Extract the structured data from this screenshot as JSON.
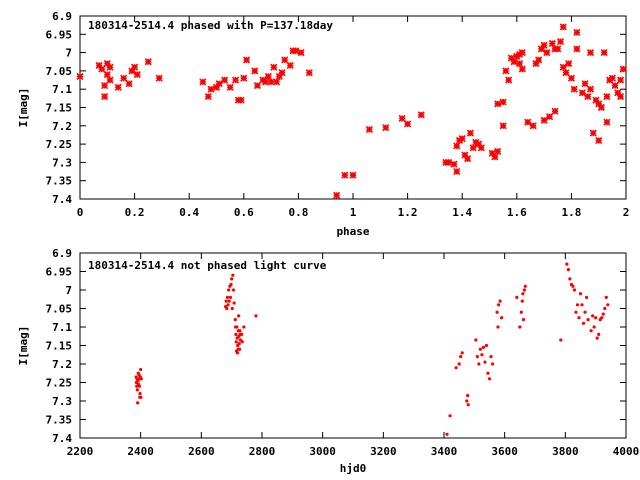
{
  "chart_data": [
    {
      "type": "scatter",
      "title": "180314-2514.4 phased with P=137.18day",
      "xlabel": "phase",
      "ylabel": "I[mag]",
      "xlim": [
        0,
        2
      ],
      "ylim": [
        6.9,
        7.4
      ],
      "y_inverted": true,
      "grid": false,
      "legend": "none",
      "marker": "cross",
      "color": "#ff0000",
      "xticks": [
        "0",
        "0.2",
        "0.4",
        "0.6",
        "0.8",
        "1",
        "1.2",
        "1.4",
        "1.6",
        "1.8",
        "2"
      ],
      "yticks": [
        "6.9",
        "6.95",
        "7",
        "7.05",
        "7.1",
        "7.15",
        "7.2",
        "7.25",
        "7.3",
        "7.35",
        "7.4"
      ],
      "points": [
        [
          0.0,
          7.065
        ],
        [
          0.07,
          7.035
        ],
        [
          0.08,
          7.045
        ],
        [
          0.09,
          7.09
        ],
        [
          0.09,
          7.12
        ],
        [
          0.1,
          7.03
        ],
        [
          0.1,
          7.06
        ],
        [
          0.11,
          7.04
        ],
        [
          0.11,
          7.075
        ],
        [
          0.14,
          7.095
        ],
        [
          0.16,
          7.07
        ],
        [
          0.18,
          7.085
        ],
        [
          0.19,
          7.05
        ],
        [
          0.2,
          7.04
        ],
        [
          0.21,
          7.06
        ],
        [
          0.25,
          7.025
        ],
        [
          0.29,
          7.07
        ],
        [
          0.45,
          7.08
        ],
        [
          0.47,
          7.12
        ],
        [
          0.48,
          7.1
        ],
        [
          0.5,
          7.095
        ],
        [
          0.51,
          7.085
        ],
        [
          0.53,
          7.075
        ],
        [
          0.55,
          7.095
        ],
        [
          0.57,
          7.075
        ],
        [
          0.58,
          7.13
        ],
        [
          0.59,
          7.13
        ],
        [
          0.6,
          7.07
        ],
        [
          0.61,
          7.02
        ],
        [
          0.64,
          7.05
        ],
        [
          0.65,
          7.09
        ],
        [
          0.67,
          7.075
        ],
        [
          0.68,
          7.08
        ],
        [
          0.69,
          7.065
        ],
        [
          0.7,
          7.08
        ],
        [
          0.71,
          7.04
        ],
        [
          0.72,
          7.08
        ],
        [
          0.73,
          7.065
        ],
        [
          0.74,
          7.055
        ],
        [
          0.75,
          7.02
        ],
        [
          0.77,
          7.035
        ],
        [
          0.78,
          6.995
        ],
        [
          0.79,
          6.995
        ],
        [
          0.81,
          7.0
        ],
        [
          0.84,
          7.055
        ],
        [
          0.94,
          7.39
        ],
        [
          0.97,
          7.335
        ],
        [
          1.0,
          7.335
        ],
        [
          1.06,
          7.21
        ],
        [
          1.12,
          7.205
        ],
        [
          1.18,
          7.18
        ],
        [
          1.2,
          7.195
        ],
        [
          1.25,
          7.17
        ],
        [
          1.34,
          7.3
        ],
        [
          1.35,
          7.3
        ],
        [
          1.37,
          7.305
        ],
        [
          1.38,
          7.325
        ],
        [
          1.38,
          7.255
        ],
        [
          1.39,
          7.24
        ],
        [
          1.4,
          7.235
        ],
        [
          1.41,
          7.28
        ],
        [
          1.42,
          7.29
        ],
        [
          1.43,
          7.22
        ],
        [
          1.44,
          7.26
        ],
        [
          1.45,
          7.245
        ],
        [
          1.46,
          7.25
        ],
        [
          1.47,
          7.26
        ],
        [
          1.51,
          7.275
        ],
        [
          1.52,
          7.285
        ],
        [
          1.53,
          7.27
        ],
        [
          1.53,
          7.14
        ],
        [
          1.55,
          7.2
        ],
        [
          1.55,
          7.135
        ],
        [
          1.56,
          7.05
        ],
        [
          1.57,
          7.075
        ],
        [
          1.58,
          7.015
        ],
        [
          1.59,
          7.025
        ],
        [
          1.6,
          7.01
        ],
        [
          1.61,
          7.005
        ],
        [
          1.61,
          7.03
        ],
        [
          1.62,
          7.0
        ],
        [
          1.62,
          7.045
        ],
        [
          1.64,
          7.19
        ],
        [
          1.66,
          7.2
        ],
        [
          1.67,
          7.03
        ],
        [
          1.68,
          7.02
        ],
        [
          1.69,
          6.99
        ],
        [
          1.7,
          7.185
        ],
        [
          1.7,
          6.98
        ],
        [
          1.71,
          7.0
        ],
        [
          1.72,
          7.175
        ],
        [
          1.73,
          6.975
        ],
        [
          1.74,
          6.99
        ],
        [
          1.74,
          7.16
        ],
        [
          1.75,
          6.99
        ],
        [
          1.76,
          6.97
        ],
        [
          1.77,
          7.04
        ],
        [
          1.77,
          6.93
        ],
        [
          1.78,
          7.055
        ],
        [
          1.79,
          7.03
        ],
        [
          1.8,
          7.07
        ],
        [
          1.81,
          7.1
        ],
        [
          1.82,
          6.945
        ],
        [
          1.82,
          6.99
        ],
        [
          1.84,
          7.11
        ],
        [
          1.85,
          7.085
        ],
        [
          1.86,
          7.12
        ],
        [
          1.87,
          7.1
        ],
        [
          1.87,
          7.0
        ],
        [
          1.88,
          7.22
        ],
        [
          1.89,
          7.13
        ],
        [
          1.9,
          7.14
        ],
        [
          1.9,
          7.24
        ],
        [
          1.91,
          7.15
        ],
        [
          1.92,
          7.0
        ],
        [
          1.93,
          7.12
        ],
        [
          1.93,
          7.19
        ],
        [
          1.94,
          7.075
        ],
        [
          1.95,
          7.07
        ],
        [
          1.96,
          7.09
        ],
        [
          1.97,
          7.11
        ],
        [
          1.98,
          7.12
        ],
        [
          1.98,
          7.075
        ],
        [
          1.99,
          7.045
        ]
      ]
    },
    {
      "type": "scatter",
      "title": "180314-2514.4 not phased light curve",
      "xlabel": "hjd0",
      "ylabel": "I[mag]",
      "xlim": [
        2200,
        4000
      ],
      "ylim": [
        6.9,
        7.4
      ],
      "y_inverted": true,
      "grid": false,
      "legend": "none",
      "marker": "dot",
      "color": "#ff0000",
      "xticks": [
        "2200",
        "2400",
        "2600",
        "2800",
        "3000",
        "3200",
        "3400",
        "3600",
        "3800",
        "4000"
      ],
      "yticks": [
        "6.9",
        "6.95",
        "7",
        "7.05",
        "7.1",
        "7.15",
        "7.2",
        "7.25",
        "7.3",
        "7.35",
        "7.4"
      ],
      "points": [
        [
          2385,
          7.235
        ],
        [
          2386,
          7.25
        ],
        [
          2387,
          7.26
        ],
        [
          2388,
          7.24
        ],
        [
          2389,
          7.27
        ],
        [
          2390,
          7.305
        ],
        [
          2391,
          7.245
        ],
        [
          2392,
          7.225
        ],
        [
          2393,
          7.255
        ],
        [
          2394,
          7.24
        ],
        [
          2395,
          7.23
        ],
        [
          2396,
          7.26
        ],
        [
          2397,
          7.29
        ],
        [
          2398,
          7.28
        ],
        [
          2399,
          7.235
        ],
        [
          2400,
          7.215
        ],
        [
          2401,
          7.29
        ],
        [
          2402,
          7.24
        ],
        [
          2680,
          7.045
        ],
        [
          2682,
          7.03
        ],
        [
          2684,
          7.05
        ],
        [
          2686,
          7.02
        ],
        [
          2688,
          7.04
        ],
        [
          2690,
          7.0
        ],
        [
          2692,
          7.03
        ],
        [
          2694,
          6.99
        ],
        [
          2696,
          7.02
        ],
        [
          2698,
          6.985
        ],
        [
          2700,
          6.97
        ],
        [
          2702,
          7.05
        ],
        [
          2704,
          6.96
        ],
        [
          2706,
          7.0
        ],
        [
          2708,
          7.035
        ],
        [
          2712,
          7.08
        ],
        [
          2713,
          7.1
        ],
        [
          2714,
          7.12
        ],
        [
          2715,
          7.14
        ],
        [
          2716,
          7.165
        ],
        [
          2717,
          7.1
        ],
        [
          2718,
          7.13
        ],
        [
          2719,
          7.17
        ],
        [
          2720,
          7.15
        ],
        [
          2721,
          7.16
        ],
        [
          2722,
          7.11
        ],
        [
          2723,
          7.07
        ],
        [
          2724,
          7.125
        ],
        [
          2725,
          7.145
        ],
        [
          2726,
          7.16
        ],
        [
          2727,
          7.11
        ],
        [
          2728,
          7.12
        ],
        [
          2729,
          7.135
        ],
        [
          2730,
          7.12
        ],
        [
          2733,
          7.12
        ],
        [
          2735,
          7.14
        ],
        [
          2740,
          7.1
        ],
        [
          2780,
          7.07
        ],
        [
          3410,
          7.39
        ],
        [
          3420,
          7.34
        ],
        [
          3440,
          7.21
        ],
        [
          3450,
          7.2
        ],
        [
          3455,
          7.18
        ],
        [
          3460,
          7.17
        ],
        [
          3475,
          7.3
        ],
        [
          3478,
          7.285
        ],
        [
          3480,
          7.31
        ],
        [
          3505,
          7.135
        ],
        [
          3510,
          7.18
        ],
        [
          3515,
          7.2
        ],
        [
          3520,
          7.16
        ],
        [
          3525,
          7.175
        ],
        [
          3530,
          7.155
        ],
        [
          3535,
          7.195
        ],
        [
          3540,
          7.15
        ],
        [
          3545,
          7.225
        ],
        [
          3550,
          7.24
        ],
        [
          3555,
          7.18
        ],
        [
          3560,
          7.2
        ],
        [
          3575,
          7.06
        ],
        [
          3578,
          7.1
        ],
        [
          3580,
          7.04
        ],
        [
          3585,
          7.03
        ],
        [
          3590,
          7.075
        ],
        [
          3640,
          7.02
        ],
        [
          3650,
          7.1
        ],
        [
          3655,
          7.06
        ],
        [
          3658,
          7.03
        ],
        [
          3660,
          7.01
        ],
        [
          3662,
          7.08
        ],
        [
          3665,
          7.0
        ],
        [
          3668,
          6.99
        ],
        [
          3785,
          7.135
        ],
        [
          3805,
          6.93
        ],
        [
          3810,
          6.945
        ],
        [
          3815,
          6.97
        ],
        [
          3820,
          6.985
        ],
        [
          3825,
          6.99
        ],
        [
          3830,
          7.0
        ],
        [
          3835,
          7.06
        ],
        [
          3840,
          7.04
        ],
        [
          3845,
          7.075
        ],
        [
          3850,
          7.01
        ],
        [
          3855,
          7.04
        ],
        [
          3860,
          7.09
        ],
        [
          3865,
          7.06
        ],
        [
          3870,
          7.02
        ],
        [
          3875,
          7.08
        ],
        [
          3885,
          7.11
        ],
        [
          3890,
          7.07
        ],
        [
          3895,
          7.1
        ],
        [
          3900,
          7.075
        ],
        [
          3905,
          7.13
        ],
        [
          3910,
          7.12
        ],
        [
          3915,
          7.08
        ],
        [
          3920,
          7.075
        ],
        [
          3925,
          7.065
        ],
        [
          3930,
          7.05
        ],
        [
          3935,
          7.02
        ],
        [
          3940,
          7.04
        ]
      ]
    }
  ]
}
